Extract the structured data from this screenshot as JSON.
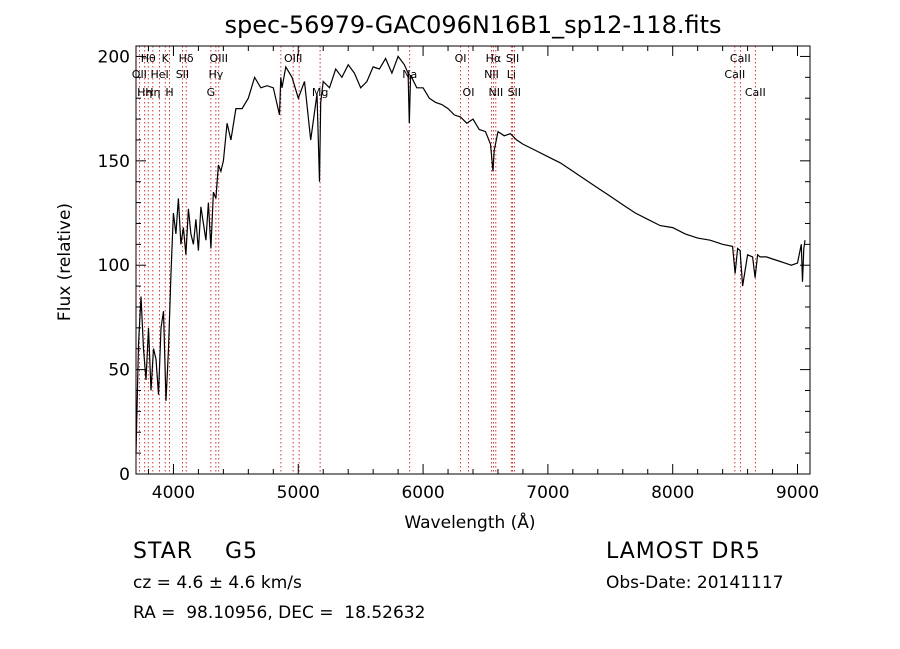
{
  "chart_data": {
    "type": "line",
    "title": "spec-56979-GAC096N16B1_sp12-118.fits",
    "xlabel": "Wavelength (Å)",
    "ylabel": "Flux (relative)",
    "xlim": [
      3700,
      9100
    ],
    "ylim": [
      0,
      205
    ],
    "xticks": [
      4000,
      5000,
      6000,
      7000,
      8000,
      9000
    ],
    "yticks": [
      0,
      50,
      100,
      150,
      200
    ],
    "series": [
      {
        "x": [
          3700,
          3720,
          3740,
          3760,
          3780,
          3800,
          3820,
          3840,
          3860,
          3880,
          3900,
          3920,
          3940,
          3960,
          3980,
          4000,
          4020,
          4040,
          4060,
          4080,
          4100,
          4120,
          4140,
          4160,
          4180,
          4200,
          4220,
          4240,
          4260,
          4280,
          4300,
          4320,
          4340,
          4360,
          4380,
          4400,
          4430,
          4460,
          4500,
          4550,
          4600,
          4650,
          4700,
          4750,
          4800,
          4850,
          4860,
          4870,
          4900,
          4950,
          5000,
          5050,
          5100,
          5150,
          5170,
          5180,
          5200,
          5250,
          5300,
          5350,
          5400,
          5450,
          5500,
          5550,
          5600,
          5650,
          5700,
          5750,
          5800,
          5850,
          5880,
          5890,
          5900,
          5950,
          6000,
          6050,
          6100,
          6150,
          6200,
          6250,
          6300,
          6350,
          6400,
          6450,
          6500,
          6540,
          6560,
          6570,
          6600,
          6650,
          6700,
          6750,
          6800,
          6900,
          7000,
          7100,
          7200,
          7300,
          7400,
          7500,
          7600,
          7700,
          7800,
          7900,
          8000,
          8100,
          8200,
          8300,
          8400,
          8480,
          8500,
          8520,
          8540,
          8560,
          8600,
          8640,
          8660,
          8680,
          8700,
          8750,
          8800,
          8850,
          8900,
          8950,
          9000,
          9030,
          9040,
          9050,
          9060
        ],
        "values": [
          10,
          62,
          85,
          60,
          45,
          70,
          40,
          60,
          55,
          38,
          70,
          78,
          35,
          60,
          95,
          125,
          115,
          132,
          110,
          118,
          105,
          127,
          115,
          110,
          122,
          107,
          128,
          120,
          112,
          130,
          108,
          135,
          132,
          148,
          145,
          150,
          168,
          160,
          175,
          175,
          180,
          190,
          185,
          186,
          185,
          172,
          190,
          185,
          195,
          190,
          180,
          188,
          160,
          182,
          140,
          178,
          188,
          185,
          194,
          190,
          196,
          192,
          185,
          188,
          195,
          194,
          199,
          192,
          200,
          196,
          192,
          168,
          191,
          185,
          185,
          180,
          178,
          177,
          175,
          172,
          171,
          168,
          170,
          165,
          164,
          158,
          145,
          155,
          164,
          162,
          163,
          160,
          158,
          155,
          152,
          149,
          145,
          141,
          137,
          133,
          129,
          125,
          122,
          119,
          118,
          115,
          113,
          112,
          110,
          109,
          96,
          108,
          107,
          90,
          105,
          104,
          94,
          105,
          104,
          104,
          103,
          102,
          101,
          100,
          101,
          110,
          92,
          108,
          112
        ]
      }
    ],
    "line_markers": [
      {
        "wavelength": 3727,
        "label": "OII",
        "row": 2
      },
      {
        "wavelength": 3770,
        "label": "Hη",
        "row": 3
      },
      {
        "wavelength": 3798,
        "label": "Hθ",
        "row": 1
      },
      {
        "wavelength": 3835,
        "label": "Hη",
        "row": 3
      },
      {
        "wavelength": 3889,
        "label": "HeI",
        "row": 2
      },
      {
        "wavelength": 3934,
        "label": "K",
        "row": 1
      },
      {
        "wavelength": 3969,
        "label": "H",
        "row": 3
      },
      {
        "wavelength": 4072,
        "label": "SII",
        "row": 2
      },
      {
        "wavelength": 4102,
        "label": "Hδ",
        "row": 1
      },
      {
        "wavelength": 4300,
        "label": "G",
        "row": 3
      },
      {
        "wavelength": 4340,
        "label": "Hγ",
        "row": 2
      },
      {
        "wavelength": 4363,
        "label": "OIII",
        "row": 1
      },
      {
        "wavelength": 4861,
        "label": "",
        "row": 0
      },
      {
        "wavelength": 4959,
        "label": "OIII",
        "row": 1
      },
      {
        "wavelength": 5007,
        "label": "",
        "row": 0
      },
      {
        "wavelength": 5175,
        "label": "Mg",
        "row": 3
      },
      {
        "wavelength": 5893,
        "label": "Na",
        "row": 2
      },
      {
        "wavelength": 6300,
        "label": "OI",
        "row": 1
      },
      {
        "wavelength": 6364,
        "label": "OI",
        "row": 3
      },
      {
        "wavelength": 6548,
        "label": "NII",
        "row": 2
      },
      {
        "wavelength": 6563,
        "label": "Hα",
        "row": 1
      },
      {
        "wavelength": 6583,
        "label": "NII",
        "row": 3
      },
      {
        "wavelength": 6707,
        "label": "Li",
        "row": 2
      },
      {
        "wavelength": 6717,
        "label": "SII",
        "row": 1
      },
      {
        "wavelength": 6731,
        "label": "SII",
        "row": 3
      },
      {
        "wavelength": 8498,
        "label": "CaII",
        "row": 2
      },
      {
        "wavelength": 8542,
        "label": "CaII",
        "row": 1
      },
      {
        "wavelength": 8662,
        "label": "CaII",
        "row": 3
      }
    ],
    "grid": false,
    "line_color": "#000000",
    "marker_color": "#cc0000"
  },
  "info": {
    "star_class": "STAR    G5",
    "cz": "cz = 4.6 ± 4.6 km/s",
    "radec": "RA =  98.10956, DEC =  18.52632",
    "survey": "LAMOST DR5",
    "obs_date": "Obs-Date: 20141117"
  }
}
